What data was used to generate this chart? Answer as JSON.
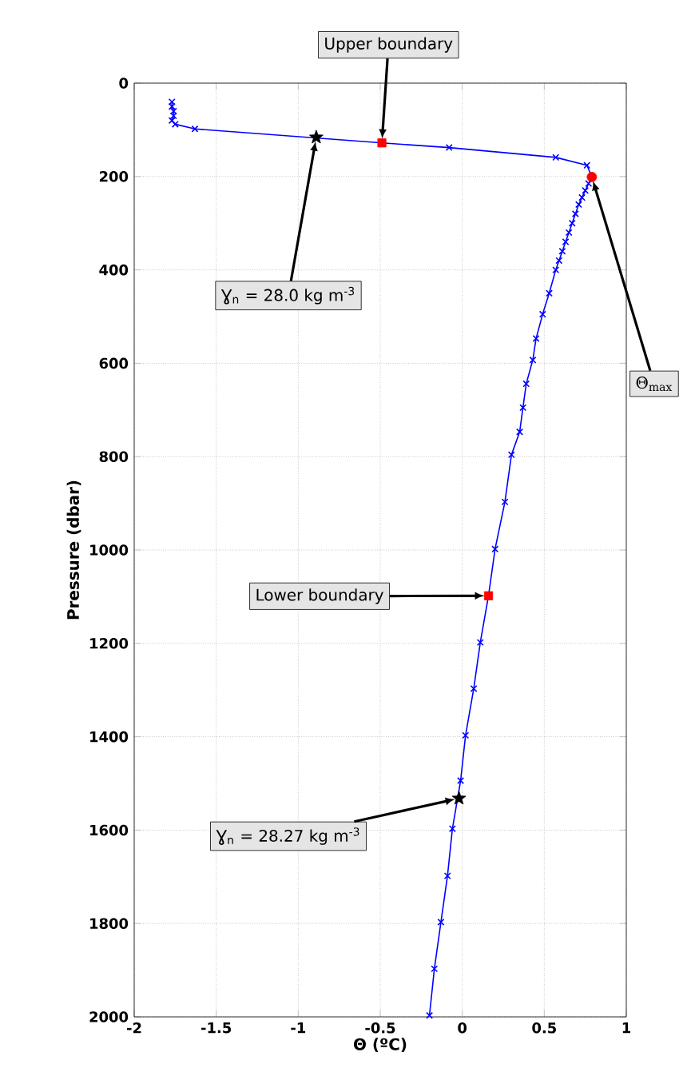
{
  "chart_data": {
    "type": "line",
    "xlabel": "Θ (ºC)",
    "ylabel": "Pressure (dbar)",
    "xlim": [
      -2,
      1
    ],
    "ylim": [
      2000,
      0
    ],
    "xticks": [
      -2,
      -1.5,
      -1,
      -0.5,
      0,
      0.5,
      1
    ],
    "yticks": [
      0,
      200,
      400,
      600,
      800,
      1000,
      1200,
      1400,
      1600,
      1800,
      2000
    ],
    "grid": true,
    "series": [
      {
        "type": "line",
        "color": "#0000ff",
        "marker": "cross",
        "x": [
          -1.77,
          -1.77,
          -1.76,
          -1.76,
          -1.77,
          -1.75,
          -1.63,
          -0.49,
          -0.08,
          0.57,
          0.76,
          0.79,
          0.77,
          0.75,
          0.73,
          0.71,
          0.69,
          0.67,
          0.65,
          0.63,
          0.61,
          0.59,
          0.57,
          0.53,
          0.49,
          0.45,
          0.43,
          0.39,
          0.37,
          0.35,
          0.3,
          0.26,
          0.2,
          0.16,
          0.11,
          0.07,
          0.02,
          -0.01,
          -0.06,
          -0.09,
          -0.13,
          -0.17,
          -0.2
        ],
        "values": [
          40,
          50,
          60,
          70,
          80,
          88,
          98,
          128,
          138,
          159,
          176,
          201,
          215,
          230,
          245,
          260,
          280,
          300,
          320,
          340,
          360,
          380,
          400,
          450,
          495,
          547,
          593,
          644,
          695,
          747,
          796,
          897,
          998,
          1098,
          1198,
          1297,
          1397,
          1494,
          1597,
          1698,
          1797,
          1897,
          1997
        ]
      },
      {
        "type": "scatter",
        "color": "#ff0000",
        "marker": "square",
        "x": [
          -0.49,
          0.16
        ],
        "values": [
          128,
          1098
        ]
      },
      {
        "type": "scatter",
        "color": "#ff0000",
        "marker": "circle",
        "x": [
          0.79
        ],
        "values": [
          201
        ]
      },
      {
        "type": "scatter",
        "color": "#000000",
        "marker": "star",
        "x": [
          -0.89,
          -0.02
        ],
        "values": [
          116,
          1532
        ]
      }
    ],
    "annotations": [
      {
        "text": "Upper boundary",
        "x": -0.49,
        "y": 128
      },
      {
        "text": "Ɣ$_{n}$ = 28.0 kg m$^{-3}$",
        "x": -0.89,
        "y": 116
      },
      {
        "text": "Θ$_{max}$",
        "x": 0.79,
        "y": 201
      },
      {
        "text": "Lower boundary",
        "x": 0.16,
        "y": 1098
      },
      {
        "text": "Ɣ$_{n}$ = 28.27 kg m$^{-3}$",
        "x": -0.02,
        "y": 1532
      }
    ]
  }
}
